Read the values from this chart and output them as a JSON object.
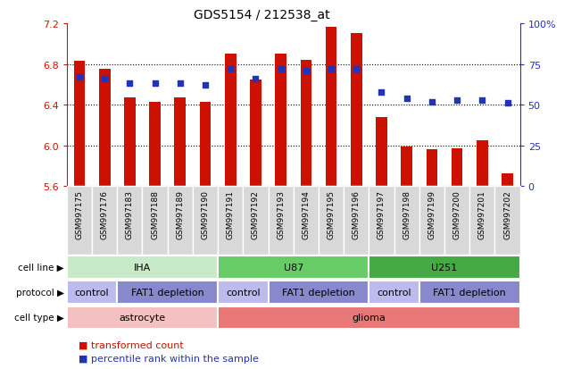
{
  "title": "GDS5154 / 212538_at",
  "samples": [
    "GSM997175",
    "GSM997176",
    "GSM997183",
    "GSM997188",
    "GSM997189",
    "GSM997190",
    "GSM997191",
    "GSM997192",
    "GSM997193",
    "GSM997194",
    "GSM997195",
    "GSM997196",
    "GSM997197",
    "GSM997198",
    "GSM997199",
    "GSM997200",
    "GSM997201",
    "GSM997202"
  ],
  "transformed_count": [
    6.83,
    6.75,
    6.47,
    6.43,
    6.47,
    6.43,
    6.9,
    6.65,
    6.9,
    6.84,
    7.16,
    7.1,
    6.28,
    5.99,
    5.96,
    5.97,
    6.05,
    5.73
  ],
  "percentile_rank": [
    67,
    66,
    63,
    63,
    63,
    62,
    72,
    66,
    72,
    71,
    72,
    72,
    58,
    54,
    52,
    53,
    53,
    51
  ],
  "ylim_left": [
    5.6,
    7.2
  ],
  "ylim_right": [
    0,
    100
  ],
  "yticks_left": [
    5.6,
    6.0,
    6.4,
    6.8,
    7.2
  ],
  "yticks_right": [
    0,
    25,
    50,
    75,
    100
  ],
  "bar_color": "#cc1100",
  "dot_color": "#2233bb",
  "bar_bottom": 5.6,
  "cell_line_groups": [
    {
      "label": "IHA",
      "start": 0,
      "end": 6,
      "color": "#c8eac8"
    },
    {
      "label": "U87",
      "start": 6,
      "end": 12,
      "color": "#66cc66"
    },
    {
      "label": "U251",
      "start": 12,
      "end": 18,
      "color": "#44aa44"
    }
  ],
  "protocol_groups": [
    {
      "label": "control",
      "start": 0,
      "end": 2,
      "color": "#bbbbee"
    },
    {
      "label": "FAT1 depletion",
      "start": 2,
      "end": 6,
      "color": "#8888cc"
    },
    {
      "label": "control",
      "start": 6,
      "end": 8,
      "color": "#bbbbee"
    },
    {
      "label": "FAT1 depletion",
      "start": 8,
      "end": 12,
      "color": "#8888cc"
    },
    {
      "label": "control",
      "start": 12,
      "end": 14,
      "color": "#bbbbee"
    },
    {
      "label": "FAT1 depletion",
      "start": 14,
      "end": 18,
      "color": "#8888cc"
    }
  ],
  "cell_type_groups": [
    {
      "label": "astrocyte",
      "start": 0,
      "end": 6,
      "color": "#f5c0c0"
    },
    {
      "label": "glioma",
      "start": 6,
      "end": 18,
      "color": "#e87878"
    }
  ],
  "row_labels": [
    "cell line",
    "protocol",
    "cell type"
  ],
  "left_axis_color": "#cc1100",
  "right_axis_color": "#2233bb",
  "bar_width": 0.45
}
